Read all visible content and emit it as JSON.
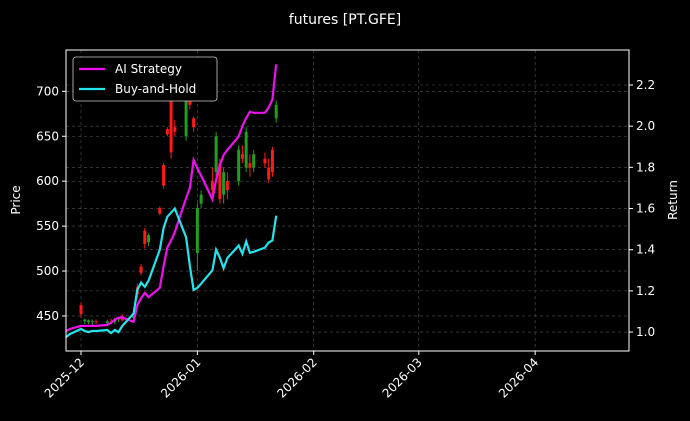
{
  "chart_data": {
    "type": "candlestick",
    "title": "futures [PT.GFE]",
    "ylabel": "Price",
    "y2label": "Return",
    "x": [
      "2025-11-27",
      "2025-11-28",
      "2025-12-01",
      "2025-12-02",
      "2025-12-03",
      "2025-12-04",
      "2025-12-05",
      "2025-12-08",
      "2025-12-09",
      "2025-12-10",
      "2025-12-11",
      "2025-12-12",
      "2025-12-15",
      "2025-12-16",
      "2025-12-17",
      "2025-12-18",
      "2025-12-19",
      "2025-12-22",
      "2025-12-23",
      "2025-12-24",
      "2025-12-25",
      "2025-12-26",
      "2025-12-29",
      "2025-12-30",
      "2025-12-31",
      "2026-01-01",
      "2026-01-02",
      "2026-01-05",
      "2026-01-06",
      "2026-01-07",
      "2026-01-08",
      "2026-01-09",
      "2026-01-12",
      "2026-01-13",
      "2026-01-14",
      "2026-01-15",
      "2026-01-16",
      "2026-01-19",
      "2026-01-20",
      "2026-01-21",
      "2026-01-22"
    ],
    "open": [
      null,
      null,
      462,
      444,
      443,
      443,
      444,
      442,
      444,
      443,
      446,
      450,
      448,
      482,
      505,
      545,
      532,
      570,
      618,
      658,
      690,
      660,
      650,
      690,
      670,
      520,
      575,
      600,
      610,
      620,
      585,
      600,
      600,
      630,
      615,
      620,
      615,
      625,
      615,
      635,
      670
    ],
    "high": [
      null,
      null,
      465,
      447,
      446,
      446,
      446,
      446,
      447,
      448,
      449,
      452,
      452,
      486,
      508,
      548,
      542,
      572,
      620,
      660,
      695,
      668,
      705,
      695,
      672,
      575,
      590,
      615,
      655,
      625,
      615,
      610,
      640,
      640,
      660,
      630,
      635,
      632,
      625,
      638,
      690
    ],
    "low": [
      null,
      null,
      448,
      441,
      441,
      440,
      441,
      440,
      441,
      441,
      443,
      444,
      445,
      470,
      495,
      525,
      528,
      562,
      592,
      650,
      625,
      650,
      645,
      680,
      655,
      500,
      570,
      585,
      605,
      575,
      575,
      580,
      595,
      620,
      610,
      605,
      610,
      615,
      598,
      605,
      665
    ],
    "close": [
      null,
      null,
      452,
      446,
      445,
      444,
      443,
      444,
      442,
      446,
      448,
      445,
      450,
      474,
      498,
      530,
      540,
      564,
      595,
      652,
      632,
      655,
      700,
      685,
      660,
      570,
      585,
      590,
      650,
      580,
      610,
      590,
      635,
      625,
      655,
      615,
      630,
      620,
      602,
      610,
      685
    ],
    "up_color": "#1f9e1f",
    "down_color": "#ff1a1a",
    "series": [
      {
        "name": "AI Strategy",
        "color": "#ee11ee",
        "axis": "y2",
        "values": [
          1.005,
          1.015,
          1.03,
          1.03,
          1.03,
          1.03,
          1.03,
          1.035,
          1.045,
          1.06,
          1.07,
          1.07,
          1.05,
          1.13,
          1.165,
          1.19,
          1.17,
          1.215,
          1.32,
          1.41,
          1.445,
          1.485,
          1.65,
          1.7,
          1.835,
          1.795,
          1.76,
          1.645,
          1.74,
          1.81,
          1.86,
          1.885,
          1.95,
          2.0,
          2.04,
          2.07,
          2.065,
          2.065,
          2.09,
          2.13,
          2.3
        ]
      },
      {
        "name": "Buy-and-Hold",
        "color": "#22e5ee",
        "axis": "y2",
        "values": [
          0.975,
          0.99,
          1.015,
          1.005,
          1.0,
          1.005,
          1.005,
          1.01,
          0.995,
          1.01,
          1.0,
          1.03,
          1.09,
          1.205,
          1.24,
          1.22,
          1.25,
          1.4,
          1.505,
          1.56,
          1.58,
          1.6,
          1.46,
          1.32,
          1.205,
          1.215,
          1.235,
          1.3,
          1.4,
          1.36,
          1.31,
          1.36,
          1.42,
          1.38,
          1.44,
          1.385,
          1.39,
          1.41,
          1.435,
          1.445,
          1.565
        ]
      }
    ],
    "xlim": [
      "2025-11-27",
      "2026-04-26"
    ],
    "xticks": [
      "2025-12",
      "2026-01",
      "2026-02",
      "2026-03",
      "2026-04"
    ],
    "ylim": [
      411,
      746
    ],
    "yticks": [
      450,
      500,
      550,
      600,
      650,
      700
    ],
    "y2lim": [
      0.908,
      2.37
    ],
    "y2ticks": [
      {
        "value": 1,
        "label": "1.0"
      },
      1.2,
      1.4,
      1.6,
      1.8,
      {
        "value": 2,
        "label": "2.0"
      },
      2.2
    ],
    "grid": true,
    "legend": "upper left"
  }
}
